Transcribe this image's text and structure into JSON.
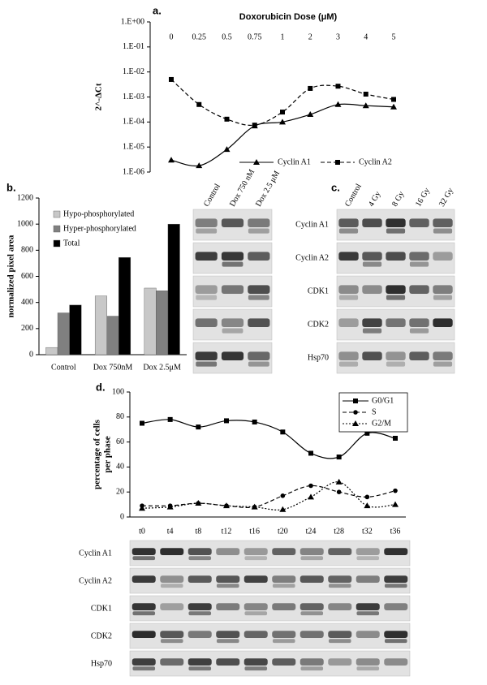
{
  "chart_data": [
    {
      "type": "line",
      "panel": "a.",
      "xlabel": "Doxorubicin Dose (μM)",
      "ylabel": "2^-ΔCt",
      "log_scale": true,
      "legend": "lower right",
      "categories": [
        "0",
        "0.25",
        "0.5",
        "0.75",
        "1",
        "2",
        "3",
        "4",
        "5"
      ],
      "ylim": [
        1e-06,
        1
      ],
      "yticks": [
        {
          "value": 1,
          "label": "1.E+00"
        },
        {
          "value": 0.1,
          "label": "1.E-01"
        },
        {
          "value": 0.01,
          "label": "1.E-02"
        },
        {
          "value": 0.001,
          "label": "1.E-03"
        },
        {
          "value": 0.0001,
          "label": "1.E-04"
        },
        {
          "value": 1e-05,
          "label": "1.E-05"
        },
        {
          "value": 1e-06,
          "label": "1.E-06"
        }
      ],
      "series": [
        {
          "name": "Cyclin A1",
          "color": "#000000",
          "line_style": "solid",
          "marker": "triangle",
          "values": [
            3e-06,
            1.8e-06,
            8e-06,
            7e-05,
            0.0001,
            0.0002,
            0.0005,
            0.00045,
            0.0004
          ]
        },
        {
          "name": "Cyclin A2",
          "color": "#000000",
          "line_style": "dashed",
          "marker": "square",
          "values": [
            0.005,
            0.0005,
            0.00013,
            7.5e-05,
            0.00025,
            0.0022,
            0.0027,
            0.0013,
            0.0008
          ]
        }
      ]
    },
    {
      "type": "bar",
      "panel": "b.",
      "ylabel": "normalized pixel area",
      "legend": "upper left",
      "categories": [
        "Control",
        "Dox 750nM",
        "Dox 2.5μM"
      ],
      "ylim": [
        0,
        1200
      ],
      "yticks": [
        0,
        200,
        400,
        600,
        800,
        1000,
        1200
      ],
      "series": [
        {
          "name": "Hypo-phosphorylated",
          "color": "#c8c8c8",
          "values": [
            55,
            450,
            510
          ]
        },
        {
          "name": "Hyper-phosphorylated",
          "color": "#808080",
          "values": [
            320,
            295,
            490
          ]
        },
        {
          "name": "Total",
          "color": "#000000",
          "values": [
            380,
            745,
            1000
          ]
        }
      ]
    },
    {
      "type": "line",
      "panel": "d.",
      "ylabel": [
        "percentage of cells",
        "per phase"
      ],
      "legend": "upper right",
      "categories": [
        "t0",
        "t4",
        "t8",
        "t12",
        "t16",
        "t20",
        "t24",
        "t28",
        "t32",
        "t36"
      ],
      "ylim": [
        0,
        100
      ],
      "yticks": [
        0,
        20,
        40,
        60,
        80,
        100
      ],
      "series": [
        {
          "name": "G0/G1",
          "color": "#000000",
          "line_style": "solid",
          "marker": "square",
          "values": [
            75,
            78,
            72,
            77,
            76,
            68,
            51,
            48,
            67,
            63
          ]
        },
        {
          "name": "S",
          "color": "#000000",
          "line_style": "dashed",
          "marker": "circle",
          "values": [
            9,
            9,
            11,
            9,
            8,
            17,
            25,
            20,
            16,
            21
          ]
        },
        {
          "name": "G2/M",
          "color": "#000000",
          "line_style": "dotted",
          "marker": "triangle",
          "values": [
            7,
            8,
            11,
            9,
            8,
            6,
            16,
            28,
            9,
            10
          ]
        }
      ]
    }
  ],
  "blots": {
    "b": {
      "lanes": [
        "Control",
        "Dox 750 nM",
        "Dox 2.5 μM"
      ],
      "rows": 5
    },
    "c": {
      "panel": "c.",
      "lanes": [
        "Control",
        "4 Gy",
        "8 Gy",
        "16 Gy",
        "32 Gy"
      ],
      "rows": [
        "Cyclin A1",
        "Cyclin A2",
        "CDK1",
        "CDK2",
        "Hsp70"
      ]
    },
    "d": {
      "lanes": 10,
      "rows": [
        "Cyclin A1",
        "Cyclin A2",
        "CDK1",
        "CDK2",
        "Hsp70"
      ]
    }
  }
}
